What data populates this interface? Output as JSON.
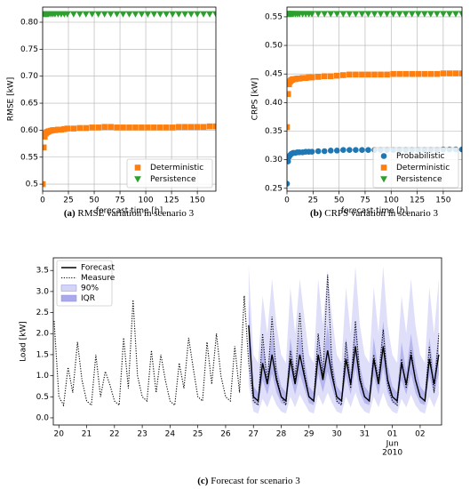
{
  "chart_data": [
    {
      "type": "scatter",
      "caption_label": "(a)",
      "caption": "RMSE variation in scenario 3",
      "xlabel": "forecast time [h]",
      "ylabel": "RMSE [kW]",
      "x": [
        0,
        1,
        2,
        3,
        4,
        5,
        6,
        8,
        10,
        12,
        15,
        18,
        21,
        24,
        30,
        36,
        42,
        48,
        54,
        60,
        66,
        72,
        78,
        84,
        90,
        96,
        102,
        108,
        114,
        120,
        126,
        132,
        138,
        144,
        150,
        156,
        162,
        168
      ],
      "series": [
        {
          "name": "Deterministic",
          "color": "#ff7f0e",
          "marker": "square",
          "values": [
            0.5,
            0.568,
            0.588,
            0.594,
            0.596,
            0.597,
            0.598,
            0.599,
            0.6,
            0.6,
            0.601,
            0.601,
            0.602,
            0.603,
            0.603,
            0.604,
            0.604,
            0.605,
            0.605,
            0.606,
            0.606,
            0.605,
            0.605,
            0.605,
            0.605,
            0.605,
            0.605,
            0.605,
            0.605,
            0.605,
            0.605,
            0.606,
            0.606,
            0.606,
            0.606,
            0.606,
            0.607,
            0.607
          ]
        },
        {
          "name": "Persistence",
          "color": "#2ca02c",
          "marker": "triangle_down",
          "values": [
            0.815,
            0.815,
            0.815,
            0.815,
            0.815,
            0.815,
            0.815,
            0.815,
            0.815,
            0.815,
            0.815,
            0.815,
            0.815,
            0.815,
            0.815,
            0.815,
            0.815,
            0.815,
            0.815,
            0.815,
            0.815,
            0.815,
            0.815,
            0.815,
            0.815,
            0.815,
            0.815,
            0.815,
            0.815,
            0.815,
            0.815,
            0.815,
            0.815,
            0.815,
            0.815,
            0.815,
            0.815,
            0.815
          ]
        }
      ],
      "xlim": [
        0,
        168
      ],
      "xticks": [
        0,
        25,
        50,
        75,
        100,
        125,
        150
      ],
      "ylim": [
        0.487,
        0.828
      ],
      "yticks": [
        0.5,
        0.55,
        {
          "value": 0.6,
          "label": "0.60"
        },
        0.65,
        {
          "value": 0.7,
          "label": "0.70"
        },
        0.75,
        {
          "value": 0.8,
          "label": "0.80"
        }
      ],
      "grid": true,
      "legend": "lower right"
    },
    {
      "type": "scatter",
      "caption_label": "(b)",
      "caption": "CRPS variation in scenario 3",
      "xlabel": "forecast time [h]",
      "ylabel": "CRPS [kW]",
      "x": [
        0,
        1,
        2,
        3,
        4,
        5,
        6,
        8,
        10,
        12,
        15,
        18,
        21,
        24,
        30,
        36,
        42,
        48,
        54,
        60,
        66,
        72,
        78,
        84,
        90,
        96,
        102,
        108,
        114,
        120,
        126,
        132,
        138,
        144,
        150,
        156,
        162,
        168
      ],
      "series": [
        {
          "name": "Probabilistic",
          "color": "#1f77b4",
          "marker": "circle",
          "values": [
            0.258,
            0.297,
            0.305,
            0.308,
            0.31,
            0.311,
            0.312,
            0.312,
            0.313,
            0.313,
            0.313,
            0.314,
            0.314,
            0.314,
            0.315,
            0.315,
            0.316,
            0.316,
            0.317,
            0.317,
            0.317,
            0.317,
            0.317,
            0.317,
            0.317,
            0.317,
            0.317,
            0.317,
            0.317,
            0.317,
            0.317,
            0.317,
            0.317,
            0.317,
            0.318,
            0.318,
            0.318,
            0.318
          ]
        },
        {
          "name": "Deterministic",
          "color": "#ff7f0e",
          "marker": "square",
          "values": [
            0.357,
            0.415,
            0.432,
            0.437,
            0.439,
            0.44,
            0.441,
            0.441,
            0.442,
            0.442,
            0.443,
            0.443,
            0.444,
            0.444,
            0.445,
            0.446,
            0.446,
            0.447,
            0.448,
            0.449,
            0.449,
            0.449,
            0.449,
            0.449,
            0.449,
            0.449,
            0.45,
            0.45,
            0.45,
            0.45,
            0.45,
            0.45,
            0.45,
            0.45,
            0.451,
            0.451,
            0.451,
            0.451
          ]
        },
        {
          "name": "Persistence",
          "color": "#2ca02c",
          "marker": "triangle_down",
          "values": [
            0.555,
            0.555,
            0.555,
            0.555,
            0.555,
            0.555,
            0.555,
            0.555,
            0.555,
            0.555,
            0.555,
            0.555,
            0.555,
            0.555,
            0.555,
            0.555,
            0.555,
            0.555,
            0.555,
            0.555,
            0.555,
            0.555,
            0.555,
            0.555,
            0.555,
            0.555,
            0.555,
            0.555,
            0.555,
            0.555,
            0.555,
            0.555,
            0.555,
            0.555,
            0.555,
            0.555,
            0.555,
            0.555
          ]
        }
      ],
      "xlim": [
        0,
        168
      ],
      "xticks": [
        0,
        25,
        50,
        75,
        100,
        125,
        150
      ],
      "ylim": [
        0.245,
        0.567
      ],
      "yticks": [
        0.25,
        {
          "value": 0.3,
          "label": "0.30"
        },
        0.35,
        {
          "value": 0.4,
          "label": "0.40"
        },
        0.45,
        {
          "value": 0.5,
          "label": "0.50"
        },
        0.55
      ],
      "grid": true,
      "legend": "lower right"
    },
    {
      "type": "line",
      "caption_label": "(c)",
      "caption": "Forecast for scenario 3",
      "ylabel": "Load [kW]",
      "x": [
        19.83,
        20,
        20.17,
        20.33,
        20.5,
        20.67,
        20.83,
        21,
        21.17,
        21.33,
        21.5,
        21.67,
        21.83,
        22,
        22.17,
        22.33,
        22.5,
        22.67,
        22.83,
        23,
        23.17,
        23.33,
        23.5,
        23.67,
        23.83,
        24,
        24.17,
        24.33,
        24.5,
        24.67,
        24.83,
        25,
        25.17,
        25.33,
        25.5,
        25.67,
        25.83,
        26,
        26.17,
        26.33,
        26.5,
        26.67,
        26.83,
        27,
        27.17,
        27.33,
        27.5,
        27.67,
        27.83,
        28,
        28.17,
        28.33,
        28.5,
        28.67,
        28.83,
        29,
        29.17,
        29.33,
        29.5,
        29.67,
        29.83,
        30,
        30.17,
        30.33,
        30.5,
        30.67,
        30.83,
        31,
        31.17,
        31.33,
        31.5,
        31.67,
        31.83,
        32,
        32.17,
        32.33,
        32.5,
        32.67,
        32.83,
        33,
        33.17,
        33.33,
        33.5,
        33.67
      ],
      "bands": [
        {
          "name": "90%",
          "color": "#d4d4f7",
          "lower": [
            null,
            null,
            null,
            null,
            null,
            null,
            null,
            null,
            null,
            null,
            null,
            null,
            null,
            null,
            null,
            null,
            null,
            null,
            null,
            null,
            null,
            null,
            null,
            null,
            null,
            null,
            null,
            null,
            null,
            null,
            null,
            null,
            null,
            null,
            null,
            null,
            null,
            null,
            null,
            null,
            null,
            null,
            0.8,
            0.15,
            0.1,
            0.45,
            0.25,
            0.55,
            0.3,
            0.15,
            0.1,
            0.5,
            0.25,
            0.55,
            0.35,
            0.15,
            0.1,
            0.55,
            0.3,
            0.6,
            0.35,
            0.15,
            0.1,
            0.5,
            0.25,
            0.6,
            0.3,
            0.15,
            0.1,
            0.5,
            0.25,
            0.6,
            0.3,
            0.15,
            0.1,
            0.45,
            0.25,
            0.55,
            0.3,
            0.15,
            0.1,
            0.5,
            0.25,
            0.55
          ],
          "upper": [
            null,
            null,
            null,
            null,
            null,
            null,
            null,
            null,
            null,
            null,
            null,
            null,
            null,
            null,
            null,
            null,
            null,
            null,
            null,
            null,
            null,
            null,
            null,
            null,
            null,
            null,
            null,
            null,
            null,
            null,
            null,
            null,
            null,
            null,
            null,
            null,
            null,
            null,
            null,
            null,
            null,
            null,
            3.6,
            1.5,
            1.3,
            2.9,
            2.0,
            3.3,
            2.2,
            1.5,
            1.3,
            3.1,
            2.0,
            3.3,
            2.4,
            1.5,
            1.3,
            3.3,
            2.2,
            3.5,
            2.4,
            1.5,
            1.3,
            3.1,
            2.0,
            3.6,
            2.2,
            1.5,
            1.3,
            3.1,
            2.0,
            3.6,
            2.2,
            1.5,
            1.3,
            2.9,
            2.0,
            3.3,
            2.2,
            1.5,
            1.3,
            3.1,
            2.0,
            3.3
          ]
        },
        {
          "name": "IQR",
          "color": "#a9a9ec",
          "lower": [
            null,
            null,
            null,
            null,
            null,
            null,
            null,
            null,
            null,
            null,
            null,
            null,
            null,
            null,
            null,
            null,
            null,
            null,
            null,
            null,
            null,
            null,
            null,
            null,
            null,
            null,
            null,
            null,
            null,
            null,
            null,
            null,
            null,
            null,
            null,
            null,
            null,
            null,
            null,
            null,
            null,
            null,
            1.6,
            0.35,
            0.3,
            0.9,
            0.55,
            1.05,
            0.6,
            0.35,
            0.3,
            1.0,
            0.55,
            1.05,
            0.7,
            0.35,
            0.3,
            1.05,
            0.6,
            1.1,
            0.7,
            0.35,
            0.3,
            1.0,
            0.55,
            1.2,
            0.6,
            0.35,
            0.3,
            1.0,
            0.55,
            1.2,
            0.6,
            0.35,
            0.3,
            0.9,
            0.55,
            1.05,
            0.6,
            0.35,
            0.3,
            1.0,
            0.55,
            1.05
          ],
          "upper": [
            null,
            null,
            null,
            null,
            null,
            null,
            null,
            null,
            null,
            null,
            null,
            null,
            null,
            null,
            null,
            null,
            null,
            null,
            null,
            null,
            null,
            null,
            null,
            null,
            null,
            null,
            null,
            null,
            null,
            null,
            null,
            null,
            null,
            null,
            null,
            null,
            null,
            null,
            null,
            null,
            null,
            null,
            2.8,
            0.75,
            0.6,
            1.8,
            1.1,
            2.0,
            1.25,
            0.75,
            0.6,
            1.9,
            1.1,
            2.0,
            1.4,
            0.75,
            0.6,
            2.0,
            1.25,
            2.2,
            1.4,
            0.75,
            0.6,
            1.9,
            1.1,
            2.3,
            1.25,
            0.75,
            0.6,
            1.9,
            1.1,
            2.3,
            1.25,
            0.75,
            0.6,
            1.8,
            1.1,
            2.0,
            1.25,
            0.75,
            0.6,
            1.9,
            1.1,
            2.0
          ]
        }
      ],
      "series": [
        {
          "name": "Forecast",
          "color": "#000000",
          "style": "solid",
          "values": [
            null,
            null,
            null,
            null,
            null,
            null,
            null,
            null,
            null,
            null,
            null,
            null,
            null,
            null,
            null,
            null,
            null,
            null,
            null,
            null,
            null,
            null,
            null,
            null,
            null,
            null,
            null,
            null,
            null,
            null,
            null,
            null,
            null,
            null,
            null,
            null,
            null,
            null,
            null,
            null,
            null,
            null,
            2.2,
            0.5,
            0.4,
            1.3,
            0.8,
            1.5,
            0.9,
            0.5,
            0.4,
            1.4,
            0.8,
            1.5,
            1.0,
            0.5,
            0.4,
            1.5,
            0.9,
            1.6,
            1.0,
            0.5,
            0.4,
            1.4,
            0.8,
            1.7,
            0.9,
            0.5,
            0.4,
            1.4,
            0.8,
            1.7,
            0.9,
            0.5,
            0.4,
            1.3,
            0.8,
            1.5,
            0.9,
            0.5,
            0.4,
            1.4,
            0.8,
            1.5
          ]
        },
        {
          "name": "Measure",
          "color": "#000000",
          "style": "dotted",
          "values": [
            2.3,
            0.5,
            0.3,
            1.2,
            0.6,
            1.8,
            0.9,
            0.4,
            0.3,
            1.5,
            0.5,
            1.1,
            0.8,
            0.4,
            0.3,
            1.9,
            0.7,
            2.8,
            1.0,
            0.5,
            0.4,
            1.6,
            0.6,
            1.5,
            0.9,
            0.4,
            0.3,
            1.3,
            0.7,
            1.9,
            1.2,
            0.5,
            0.4,
            1.8,
            0.8,
            2.0,
            1.0,
            0.5,
            0.4,
            1.7,
            0.6,
            2.9,
            1.3,
            0.4,
            0.3,
            2.0,
            0.8,
            2.4,
            1.0,
            0.5,
            0.3,
            1.6,
            0.9,
            2.5,
            1.1,
            0.5,
            0.4,
            2.0,
            1.0,
            3.4,
            1.2,
            0.4,
            0.3,
            1.8,
            0.7,
            2.3,
            1.0,
            0.5,
            0.4,
            1.5,
            0.9,
            2.1,
            0.8,
            0.4,
            0.3,
            1.4,
            0.7,
            1.6,
            0.9,
            0.5,
            0.4,
            1.7,
            0.6,
            2.0
          ]
        }
      ],
      "xlim": [
        19.8,
        33.77
      ],
      "xticks": [
        20,
        21,
        22,
        23,
        24,
        25,
        26,
        27,
        28,
        29,
        30,
        31,
        {
          "value": 32,
          "label": "01"
        },
        {
          "value": 33,
          "label": "02"
        }
      ],
      "month_label": {
        "value": 32,
        "lines": [
          "Jun",
          "2010"
        ]
      },
      "ylim": [
        -0.17,
        3.8
      ],
      "yticks": [
        {
          "value": 0,
          "label": "0.0"
        },
        0.5,
        {
          "value": 1,
          "label": "1.0"
        },
        1.5,
        {
          "value": 2,
          "label": "2.0"
        },
        2.5,
        {
          "value": 3,
          "label": "3.0"
        },
        3.5
      ],
      "grid": false,
      "legend": "upper left"
    }
  ]
}
